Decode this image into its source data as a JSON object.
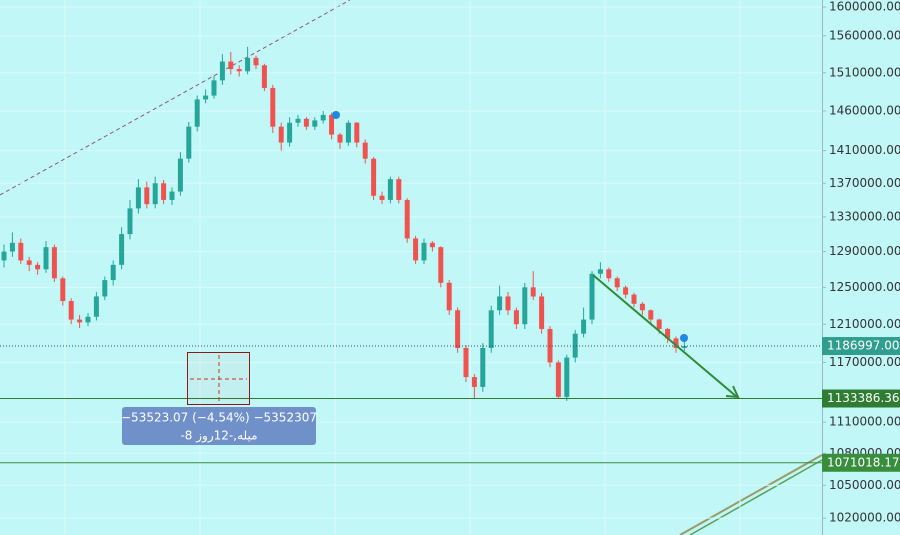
{
  "chart_data": {
    "type": "candlestick",
    "log_scale": true,
    "grid": true,
    "ylim": [
      1005000,
      1610000
    ],
    "yticks": [
      {
        "value": 1600000,
        "label": "1600000.00"
      },
      {
        "value": 1560000,
        "label": "1560000.00"
      },
      {
        "value": 1510000,
        "label": "1510000.00"
      },
      {
        "value": 1460000,
        "label": "1460000.00"
      },
      {
        "value": 1410000,
        "label": "1410000.00"
      },
      {
        "value": 1370000,
        "label": "1370000.00"
      },
      {
        "value": 1330000,
        "label": "1330000.00"
      },
      {
        "value": 1290000,
        "label": "1290000.00"
      },
      {
        "value": 1250000,
        "label": "1250000.00"
      },
      {
        "value": 1210000,
        "label": "1210000.00"
      },
      {
        "value": 1170000,
        "label": "1170000.00"
      },
      {
        "value": 1110000,
        "label": "1110000.00"
      },
      {
        "value": 1080000,
        "label": "1080000.00"
      },
      {
        "value": 1050000,
        "label": "1050000.00"
      },
      {
        "value": 1020000,
        "label": "1020000.00"
      }
    ],
    "up_color": "#26a69a",
    "down_color": "#ef5350",
    "open": [
      1280000,
      1290000,
      1300000,
      1280000,
      1275000,
      1270000,
      1295000,
      1260000,
      1235000,
      1215000,
      1212000,
      1218000,
      1240000,
      1258000,
      1275000,
      1310000,
      1340000,
      1365000,
      1345000,
      1370000,
      1350000,
      1360000,
      1400000,
      1440000,
      1475000,
      1480000,
      1500000,
      1525000,
      1515000,
      1512000,
      1530000,
      1520000,
      1490000,
      1440000,
      1420000,
      1445000,
      1450000,
      1440000,
      1448000,
      1455000,
      1430000,
      1420000,
      1445000,
      1420000,
      1400000,
      1355000,
      1350000,
      1375000,
      1350000,
      1305000,
      1280000,
      1300000,
      1295000,
      1255000,
      1225000,
      1185000,
      1155000,
      1145000,
      1185000,
      1225000,
      1240000,
      1225000,
      1210000,
      1250000,
      1240000,
      1205000,
      1170000,
      1135000,
      1175000,
      1200000,
      1215000,
      1265000,
      1270000,
      1260000,
      1250000,
      1242000,
      1232000,
      1225000,
      1215000,
      1205000,
      1195000,
      1185000
    ],
    "high": [
      1298000,
      1312000,
      1305000,
      1284000,
      1278000,
      1302000,
      1298000,
      1262000,
      1238000,
      1220000,
      1222000,
      1245000,
      1262000,
      1280000,
      1318000,
      1350000,
      1375000,
      1372000,
      1378000,
      1374000,
      1365000,
      1408000,
      1446000,
      1480000,
      1488000,
      1506000,
      1535000,
      1538000,
      1520000,
      1545000,
      1533000,
      1522000,
      1494000,
      1445000,
      1452000,
      1455000,
      1452000,
      1452000,
      1460000,
      1458000,
      1432000,
      1448000,
      1446000,
      1424000,
      1402000,
      1360000,
      1378000,
      1378000,
      1352000,
      1308000,
      1305000,
      1302000,
      1296000,
      1258000,
      1228000,
      1188000,
      1158000,
      1190000,
      1230000,
      1252000,
      1245000,
      1228000,
      1255000,
      1268000,
      1244000,
      1208000,
      1172000,
      1178000,
      1204000,
      1228000,
      1268000,
      1278000,
      1272000,
      1262000,
      1252000,
      1244000,
      1234000,
      1226000,
      1216000,
      1206000,
      1197000,
      1192000
    ],
    "low": [
      1272000,
      1284000,
      1276000,
      1268000,
      1264000,
      1266000,
      1256000,
      1230000,
      1210000,
      1206000,
      1208000,
      1214000,
      1236000,
      1252000,
      1270000,
      1304000,
      1334000,
      1340000,
      1340000,
      1345000,
      1344000,
      1355000,
      1395000,
      1434000,
      1470000,
      1476000,
      1494000,
      1508000,
      1505000,
      1508000,
      1515000,
      1486000,
      1432000,
      1410000,
      1415000,
      1440000,
      1436000,
      1436000,
      1444000,
      1424000,
      1412000,
      1416000,
      1414000,
      1394000,
      1350000,
      1345000,
      1346000,
      1346000,
      1300000,
      1276000,
      1276000,
      1290000,
      1250000,
      1220000,
      1180000,
      1150000,
      1133000,
      1140000,
      1180000,
      1220000,
      1220000,
      1205000,
      1205000,
      1236000,
      1200000,
      1165000,
      1133386,
      1131000,
      1170000,
      1196000,
      1210000,
      1260000,
      1256000,
      1246000,
      1238000,
      1228000,
      1220000,
      1210000,
      1200000,
      1190000,
      1180000,
      1182000
    ],
    "close": [
      1290000,
      1300000,
      1280000,
      1275000,
      1270000,
      1295000,
      1260000,
      1235000,
      1215000,
      1212000,
      1218000,
      1240000,
      1258000,
      1275000,
      1310000,
      1340000,
      1365000,
      1345000,
      1370000,
      1350000,
      1360000,
      1400000,
      1440000,
      1475000,
      1480000,
      1500000,
      1525000,
      1515000,
      1512000,
      1530000,
      1520000,
      1490000,
      1440000,
      1420000,
      1445000,
      1450000,
      1440000,
      1448000,
      1455000,
      1430000,
      1420000,
      1445000,
      1420000,
      1400000,
      1355000,
      1350000,
      1375000,
      1350000,
      1305000,
      1280000,
      1300000,
      1295000,
      1255000,
      1225000,
      1185000,
      1155000,
      1145000,
      1185000,
      1225000,
      1240000,
      1225000,
      1210000,
      1250000,
      1240000,
      1205000,
      1170000,
      1135000,
      1175000,
      1200000,
      1215000,
      1265000,
      1270000,
      1260000,
      1250000,
      1242000,
      1232000,
      1225000,
      1215000,
      1205000,
      1195000,
      1185000,
      1186997
    ],
    "levels": [
      {
        "value": 1186997,
        "label": "1186997.00",
        "color": "#2f9e8f",
        "style": "dotted"
      },
      {
        "value": 1133386.36,
        "label": "1133386.36",
        "color": "#2e7d32",
        "style": "solid"
      },
      {
        "value": 1071018.17,
        "label": "1071018.17",
        "color": "#388e3c",
        "style": "solid"
      }
    ],
    "measure": {
      "line1": "−53523.07 (−4.54%) −5352307",
      "line2": "میله,-12روز 8-"
    }
  }
}
